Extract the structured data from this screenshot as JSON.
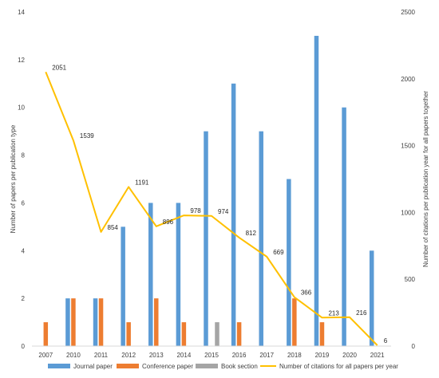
{
  "chart_data": {
    "type": "bar",
    "categories": [
      "2007",
      "2010",
      "2011",
      "2012",
      "2013",
      "2014",
      "2015",
      "2016",
      "2017",
      "2018",
      "2019",
      "2020",
      "2021"
    ],
    "series": [
      {
        "name": "Journal paper",
        "color": "#5B9BD5",
        "values": [
          0,
          2,
          2,
          5,
          6,
          6,
          9,
          11,
          9,
          7,
          13,
          10,
          4
        ]
      },
      {
        "name": "Conference paper",
        "color": "#ED7D31",
        "values": [
          1,
          2,
          2,
          1,
          2,
          1,
          0,
          1,
          0,
          2,
          1,
          0,
          0
        ]
      },
      {
        "name": "Book section",
        "color": "#A5A5A5",
        "values": [
          0,
          0,
          0,
          0,
          0,
          0,
          1,
          0,
          0,
          0,
          0,
          0,
          0
        ]
      }
    ],
    "line_series": {
      "name": "Number of citations for all papers per year",
      "color": "#FFC000",
      "values": [
        2051,
        1539,
        854,
        1191,
        896,
        978,
        974,
        812,
        669,
        366,
        213,
        216,
        6
      ],
      "labels": [
        "2051",
        "1539",
        "854",
        "1191",
        "896",
        "978",
        "974",
        "812",
        "669",
        "366",
        "213",
        "216",
        "6"
      ]
    },
    "ylabel": "Number of papers per publication type",
    "y2label": "Number of citations per publication year for all papers together",
    "ylim": [
      0,
      14
    ],
    "y_ticks": [
      0,
      2,
      4,
      6,
      8,
      10,
      12,
      14
    ],
    "y2lim": [
      0,
      2500
    ],
    "y2_ticks": [
      0,
      500,
      1000,
      1500,
      2000,
      2500
    ],
    "grid": false,
    "legend_position": "bottom"
  }
}
